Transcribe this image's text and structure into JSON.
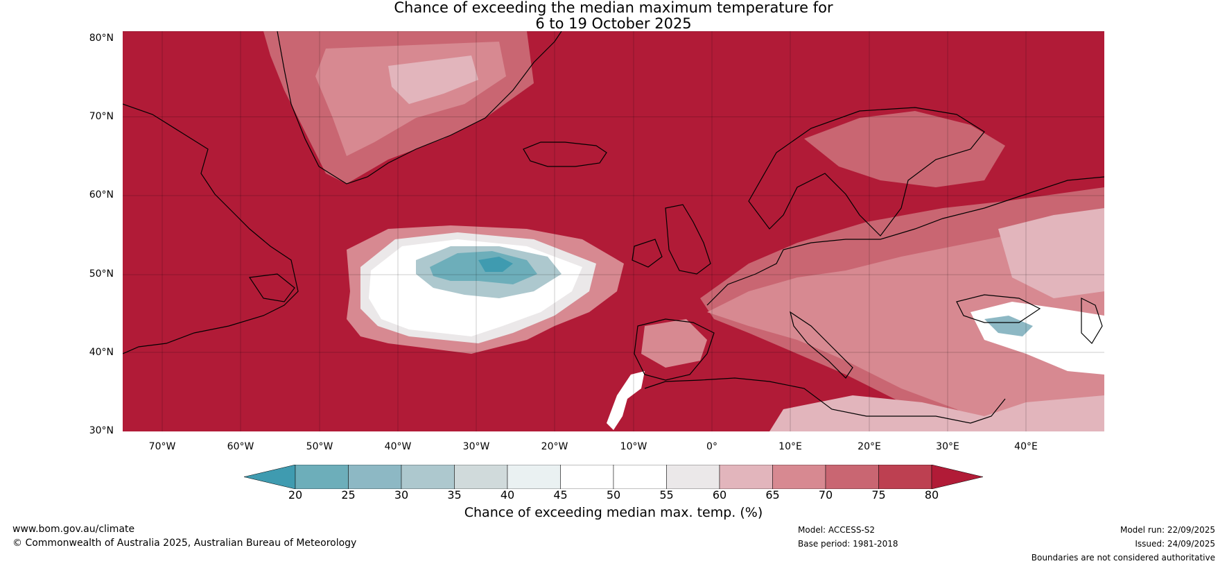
{
  "title": {
    "line1": "Chance of exceeding the median maximum temperature for",
    "line2": "6 to 19 October 2025"
  },
  "map": {
    "lat_labels": [
      "80°N",
      "70°N",
      "60°N",
      "50°N",
      "40°N",
      "30°N"
    ],
    "lon_labels": [
      "70°W",
      "60°W",
      "50°W",
      "40°W",
      "30°W",
      "20°W",
      "10°W",
      "0°",
      "10°E",
      "20°E",
      "30°E",
      "40°E"
    ],
    "lat_range": [
      30,
      80
    ],
    "lon_range": [
      -75,
      50
    ],
    "background_color": "#b11b37"
  },
  "colorbar": {
    "ticks": [
      "20",
      "25",
      "30",
      "35",
      "40",
      "45",
      "50",
      "55",
      "60",
      "65",
      "70",
      "75",
      "80"
    ],
    "colors": [
      "#3f9bb0",
      "#6daeba",
      "#8db8c4",
      "#adc8ce",
      "#d0dadb",
      "#eaf1f2",
      "#ffffff",
      "#ffffff",
      "#ebe8e9",
      "#e2b5bc",
      "#d78991",
      "#c96672",
      "#bd4051",
      "#b11b37"
    ],
    "label": "Chance of exceeding median max. temp. (%)"
  },
  "footer": {
    "website": "www.bom.gov.au/climate",
    "copyright": "© Commonwealth of Australia 2025, Australian Bureau of Meteorology",
    "model": "Model: ACCESS-S2",
    "base_period": "Base period: 1981-2018",
    "model_run": "Model run: 22/09/2025",
    "issued": "Issued: 24/09/2025",
    "boundaries": "Boundaries are not considered authoritative"
  }
}
